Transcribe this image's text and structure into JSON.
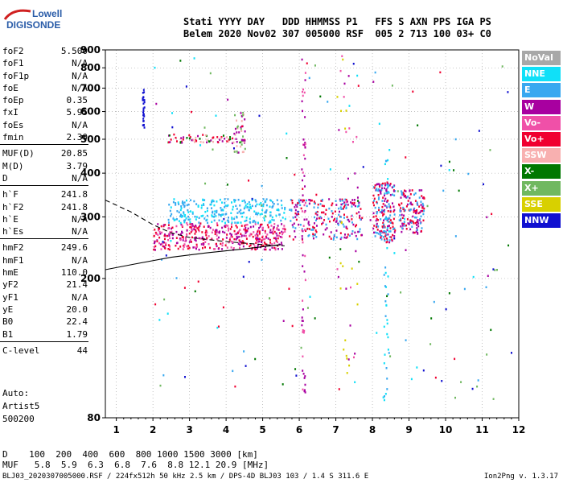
{
  "logo": {
    "line1": "Lowell",
    "line2": "DIGISONDE"
  },
  "header": {
    "line1": "Stati YYYY DAY   DDD HHMMSS P1   FFS S AXN PPS IGA PS",
    "line2": "Belem 2020 Nov02 307 005000 RSF  005 2 713 100 03+ C0"
  },
  "params": [
    {
      "name": "foF2",
      "value": "5.500"
    },
    {
      "name": "foF1",
      "value": "N/A"
    },
    {
      "name": "foF1p",
      "value": "N/A"
    },
    {
      "name": "foE",
      "value": "N/A"
    },
    {
      "name": "foEp",
      "value": "0.35"
    },
    {
      "name": "fxI",
      "value": "5.95"
    },
    {
      "name": "foEs",
      "value": "N/A"
    },
    {
      "name": "fmin",
      "value": "2.30"
    },
    {
      "name": "MUF(D)",
      "value": "20.85"
    },
    {
      "name": "M(D)",
      "value": "3.79"
    },
    {
      "name": "D",
      "value": "N/A"
    },
    {
      "name": "h`F",
      "value": "241.8"
    },
    {
      "name": "h`F2",
      "value": "241.8"
    },
    {
      "name": "h`E",
      "value": "N/A"
    },
    {
      "name": "h`Es",
      "value": "N/A"
    },
    {
      "name": "hmF2",
      "value": "249.6"
    },
    {
      "name": "hmF1",
      "value": "N/A"
    },
    {
      "name": "hmE",
      "value": "110.0"
    },
    {
      "name": "yF2",
      "value": "21.4"
    },
    {
      "name": "yF1",
      "value": "N/A"
    },
    {
      "name": "yE",
      "value": "20.0"
    },
    {
      "name": "B0",
      "value": "22.4"
    },
    {
      "name": "B1",
      "value": "1.79"
    },
    {
      "name": "C-level",
      "value": "44"
    }
  ],
  "auto": {
    "line1": "Auto:",
    "line2": "Artist5",
    "line3": "500200"
  },
  "bottom": {
    "dline": "D    100  200  400  600  800 1000 1500 3000 [km]",
    "mufline": "MUF   5.8  5.9  6.3  6.8  7.6  8.8 12.1 20.9 [MHz]"
  },
  "footer": {
    "left": "BLJ03_2020307005000.RSF / 224fx512h 50 kHz 2.5 km / DPS-4D BLJ03 103 / 1.4 S 311.6 E",
    "right": "Ion2Png v. 1.3.17"
  },
  "legend": [
    {
      "label": "NoVal",
      "color": "#a8a8a8"
    },
    {
      "label": "NNE",
      "color": "#10e0f8"
    },
    {
      "label": "E",
      "color": "#38a8f0"
    },
    {
      "label": "W",
      "color": "#a800a0"
    },
    {
      "label": "Vo-",
      "color": "#f050a8"
    },
    {
      "label": "Vo+",
      "color": "#f00030"
    },
    {
      "label": "SSW",
      "color": "#f8b0b0"
    },
    {
      "label": "X-",
      "color": "#007800"
    },
    {
      "label": "X+",
      "color": "#70b860"
    },
    {
      "label": "SSE",
      "color": "#d8d000"
    },
    {
      "label": "NNW",
      "color": "#1010d0"
    }
  ],
  "chart_data": {
    "type": "scatter",
    "xlim": [
      0.7,
      12
    ],
    "ylim": [
      80,
      900
    ],
    "x_ticks": [
      1,
      2,
      3,
      4,
      5,
      6,
      7,
      8,
      9,
      10,
      11,
      12
    ],
    "y_ticks": [
      80,
      200,
      300,
      400,
      500,
      600,
      700,
      800,
      900
    ],
    "y_scale": "log",
    "grid": true,
    "clusters": [
      {
        "x": [
          2.0,
          5.6
        ],
        "y": [
          243,
          290
        ],
        "colors": [
          "#f00030",
          "#a800a0",
          "#f050a8"
        ],
        "count": 420
      },
      {
        "x": [
          2.4,
          5.6
        ],
        "y": [
          290,
          340
        ],
        "colors": [
          "#38a8f0",
          "#10e0f8"
        ],
        "count": 260
      },
      {
        "x": [
          5.7,
          7.7
        ],
        "y": [
          260,
          340
        ],
        "colors": [
          "#f00030",
          "#a800a0",
          "#38a8f0"
        ],
        "count": 220
      },
      {
        "x": [
          8.0,
          8.6
        ],
        "y": [
          255,
          380
        ],
        "colors": [
          "#f00030",
          "#a800a0",
          "#38a8f0"
        ],
        "count": 180
      },
      {
        "x": [
          8.7,
          9.4
        ],
        "y": [
          270,
          360
        ],
        "colors": [
          "#a800a0",
          "#38a8f0",
          "#f00030"
        ],
        "count": 140
      },
      {
        "x": [
          2.3,
          4.6
        ],
        "y": [
          490,
          520
        ],
        "colors": [
          "#f00030",
          "#007800",
          "#a800a0",
          "#f8b0b0"
        ],
        "count": 70
      },
      {
        "x": [
          4.2,
          4.5
        ],
        "y": [
          460,
          600
        ],
        "colors": [
          "#70b860",
          "#f8b0b0",
          "#a800a0"
        ],
        "count": 40
      },
      {
        "x": [
          1.7,
          1.75
        ],
        "y": [
          540,
          720
        ],
        "colors": [
          "#1010d0"
        ],
        "count": 25
      },
      {
        "x": [
          6.05,
          6.15
        ],
        "y": [
          90,
          900
        ],
        "colors": [
          "#a800a0",
          "#f050a8"
        ],
        "count": 60
      },
      {
        "x": [
          8.3,
          8.45
        ],
        "y": [
          90,
          480
        ],
        "colors": [
          "#10e0f8",
          "#38a8f0"
        ],
        "count": 45
      },
      {
        "x": [
          7.0,
          7.6
        ],
        "y": [
          100,
          900
        ],
        "colors": [
          "#a800a0",
          "#d8d000",
          "#f050a8"
        ],
        "count": 45
      },
      {
        "x": [
          2.0,
          11.8
        ],
        "y": [
          90,
          900
        ],
        "colors": [
          "#38a8f0",
          "#a800a0",
          "#f00030",
          "#10e0f8",
          "#007800",
          "#70b860",
          "#1010d0"
        ],
        "count": 160
      }
    ],
    "profile_solid": {
      "x": [
        0.7,
        1.5,
        2.5,
        3.5,
        4.5,
        5.5
      ],
      "y": [
        212,
        220,
        230,
        237,
        243,
        250
      ]
    },
    "trace_dashed": {
      "x": [
        0.7,
        1.4,
        2.0,
        2.5,
        3.0,
        4.0,
        5.0,
        5.6
      ],
      "y": [
        335,
        310,
        285,
        270,
        262,
        255,
        250,
        248
      ]
    }
  }
}
